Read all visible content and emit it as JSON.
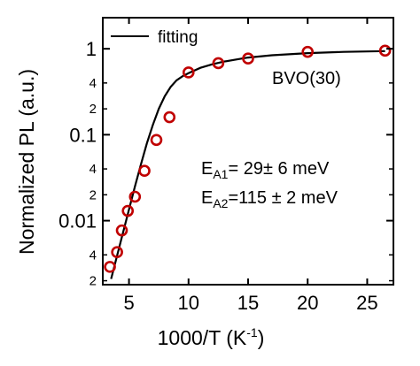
{
  "chart_data": {
    "type": "scatter",
    "title": "",
    "xlabel": "1000/T (K",
    "xlabel_sup": "-1",
    "xlabel_close": ")",
    "ylabel": "Normalized PL (a.u.)",
    "xlim": [
      2.8,
      27.2
    ],
    "ylim": [
      0.0018,
      2.3
    ],
    "yscale": "log",
    "grid": false,
    "legend_position": "top-left",
    "x_ticks": [
      "5",
      "10",
      "15",
      "20",
      "25"
    ],
    "y_major_ticks": [
      {
        "value": 0.01,
        "label": "0.01"
      },
      {
        "value": 0.1,
        "label": "0.1"
      },
      {
        "value": 1,
        "label": "1"
      }
    ],
    "y_minor_ticks": [
      {
        "value": 0.002,
        "label": "2"
      },
      {
        "value": 0.004,
        "label": "4"
      },
      {
        "value": 0.02,
        "label": "2"
      },
      {
        "value": 0.04,
        "label": "4"
      },
      {
        "value": 0.2,
        "label": "2"
      },
      {
        "value": 0.4,
        "label": "4"
      }
    ],
    "series": [
      {
        "type": "scatter",
        "color": "#c00000",
        "marker": "open-circle",
        "x": [
          3.4,
          4.0,
          4.4,
          4.9,
          5.5,
          6.3,
          7.3,
          8.4,
          10.0,
          12.5,
          15.0,
          20.0,
          26.5
        ],
        "y": [
          0.0029,
          0.0043,
          0.0077,
          0.013,
          0.019,
          0.038,
          0.087,
          0.16,
          0.53,
          0.68,
          0.77,
          0.92,
          0.95
        ]
      },
      {
        "type": "line",
        "name": "fitting",
        "color": "#000000",
        "x": [
          3.5,
          4.0,
          4.5,
          5.0,
          5.5,
          6.0,
          6.5,
          7.0,
          7.5,
          8.0,
          8.5,
          9.0,
          9.5,
          10.0,
          11.0,
          12.0,
          13.0,
          14.0,
          15.0,
          17.0,
          20.0,
          23.0,
          26.5
        ],
        "y": [
          0.0021,
          0.0039,
          0.0073,
          0.0135,
          0.025,
          0.045,
          0.079,
          0.13,
          0.2,
          0.28,
          0.36,
          0.43,
          0.48,
          0.52,
          0.6,
          0.66,
          0.71,
          0.75,
          0.79,
          0.84,
          0.89,
          0.92,
          0.94
        ]
      }
    ],
    "annotations": [
      {
        "text": "BVO(30)"
      },
      {
        "prefix": "E",
        "sub": "A1",
        "suffix": "= 29± 6 meV"
      },
      {
        "prefix": "E",
        "sub": "A2",
        "suffix": "=115 ± 2 meV"
      }
    ]
  }
}
